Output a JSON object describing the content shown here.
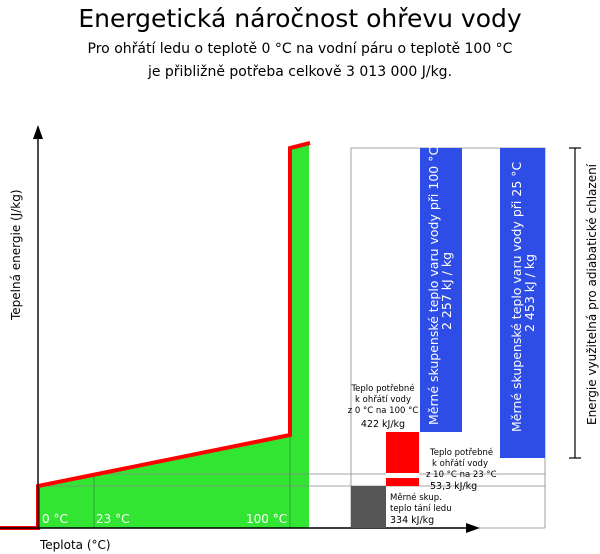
{
  "title": "Energetická náročnost ohřevu vody",
  "subtitle_line1": "Pro ohřátí ledu o teplotě 0 °C na vodní páru o teplotě 100 °C",
  "subtitle_line2": "je přibližně potřeba celkově 3 013 000 J/kg.",
  "y_axis_label": "Tepelná energie (J/kg)",
  "x_axis_label": "Teplota (°C)",
  "x_ticks": [
    "0 °C",
    "23 °C",
    "100 °C"
  ],
  "right_axis_label": "Energie využitelná pro adiabatické chlazení",
  "boxes": {
    "vaporization_100": {
      "line1": "Měrné skupenské teplo varu vody při 100 °C",
      "line2": "2 257 kJ / kg",
      "color": "#2e4de6"
    },
    "vaporization_25": {
      "line1": "Měrné skupenské teplo varu vody při 25 °C",
      "line2": "2 453 kJ / kg",
      "color": "#2e4de6"
    },
    "heating_0_100": {
      "l1": "Teplo potřebné",
      "l2": "k ohřátí vody",
      "l3": "z 0 °C na 100 °C",
      "value": "422 kJ/kg",
      "color": "#ff0000"
    },
    "heating_10_23": {
      "l1": "Teplo potřebné",
      "l2": "k ohřátí vody",
      "l3": "z 10 °C na 23 °C",
      "value": "53,3 kJ/kg",
      "color": "#ff0000"
    },
    "melting": {
      "l1": "Měrné skup.",
      "l2": "teplo tání ledu",
      "value": "334 kJ/kg",
      "color": "#555555"
    }
  },
  "colors": {
    "area": "#33e533",
    "line": "#ff0000"
  }
}
